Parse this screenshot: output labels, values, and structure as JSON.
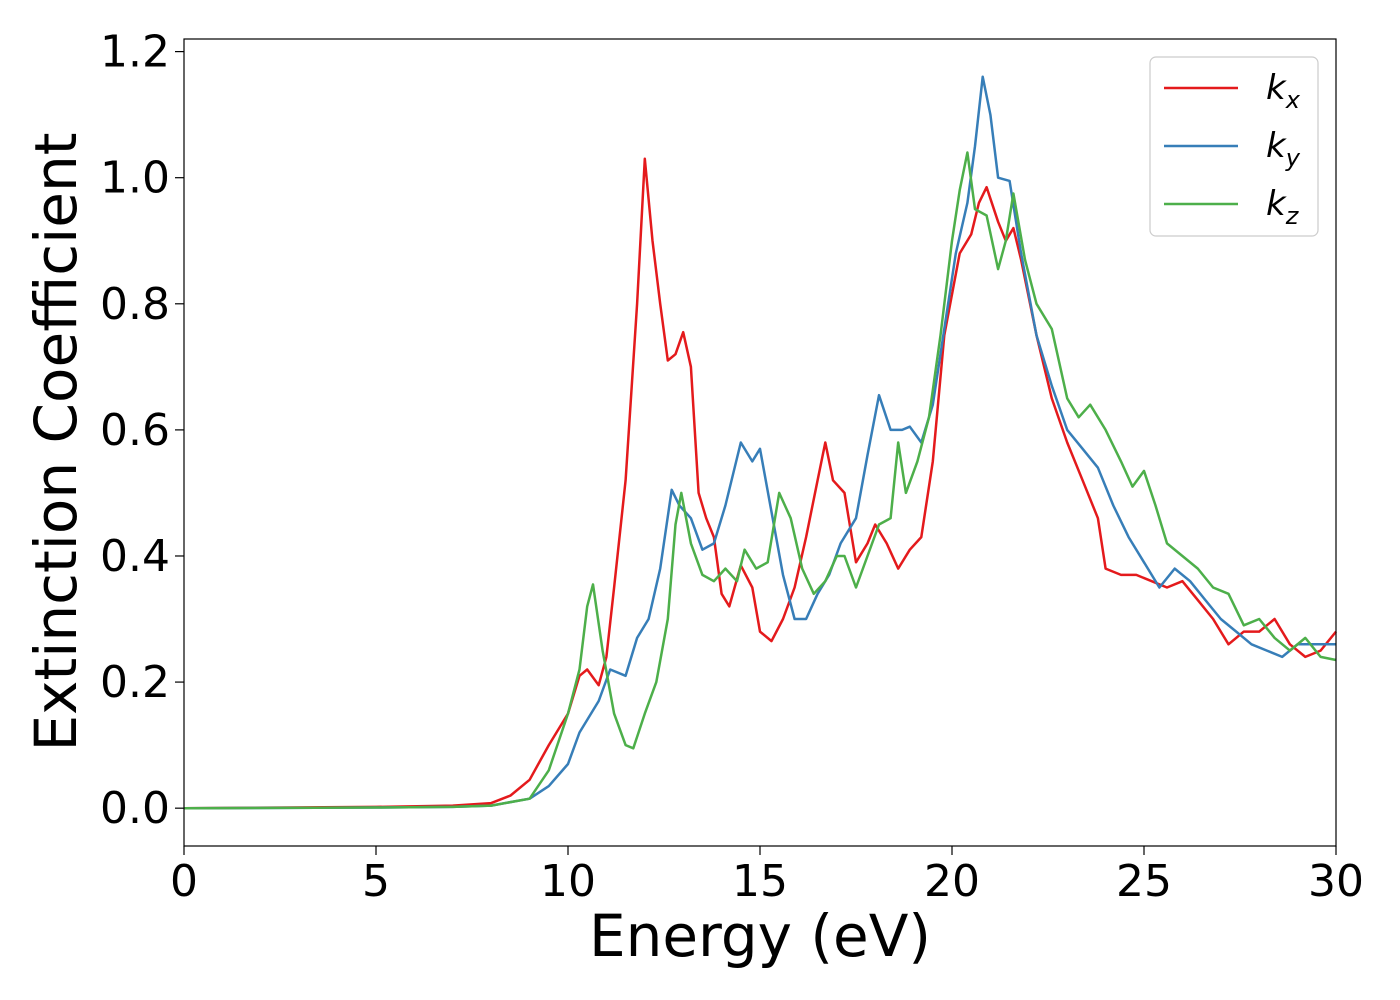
{
  "chart_data": {
    "type": "line",
    "title": "",
    "xlabel": "Energy (eV)",
    "ylabel": "Extinction Coefficient",
    "xlim": [
      0,
      30
    ],
    "ylim": [
      -0.06,
      1.22
    ],
    "xticks": [
      0,
      5,
      10,
      15,
      20,
      25,
      30
    ],
    "xtick_labels": [
      "0",
      "5",
      "10",
      "15",
      "20",
      "25",
      "30"
    ],
    "yticks": [
      0.0,
      0.2,
      0.4,
      0.6,
      0.8,
      1.0,
      1.2
    ],
    "ytick_labels": [
      "0.0",
      "0.2",
      "0.4",
      "0.6",
      "0.8",
      "1.0",
      "1.2"
    ],
    "grid": false,
    "legend_position": "top-right",
    "series": [
      {
        "name": "kx",
        "label_main": "k",
        "label_sub": "x",
        "color": "#e41a1c",
        "points": [
          [
            0,
            0
          ],
          [
            5,
            0.002
          ],
          [
            7,
            0.004
          ],
          [
            8,
            0.008
          ],
          [
            8.5,
            0.02
          ],
          [
            9,
            0.045
          ],
          [
            9.5,
            0.1
          ],
          [
            10,
            0.15
          ],
          [
            10.3,
            0.21
          ],
          [
            10.5,
            0.22
          ],
          [
            10.8,
            0.195
          ],
          [
            11,
            0.24
          ],
          [
            11.2,
            0.35
          ],
          [
            11.5,
            0.52
          ],
          [
            11.8,
            0.8
          ],
          [
            12,
            1.03
          ],
          [
            12.2,
            0.9
          ],
          [
            12.4,
            0.8
          ],
          [
            12.6,
            0.71
          ],
          [
            12.8,
            0.72
          ],
          [
            13,
            0.755
          ],
          [
            13.2,
            0.7
          ],
          [
            13.4,
            0.5
          ],
          [
            13.6,
            0.46
          ],
          [
            13.8,
            0.43
          ],
          [
            14,
            0.34
          ],
          [
            14.2,
            0.32
          ],
          [
            14.5,
            0.385
          ],
          [
            14.8,
            0.35
          ],
          [
            15,
            0.28
          ],
          [
            15.3,
            0.265
          ],
          [
            15.6,
            0.3
          ],
          [
            15.9,
            0.35
          ],
          [
            16.2,
            0.43
          ],
          [
            16.5,
            0.52
          ],
          [
            16.7,
            0.58
          ],
          [
            16.9,
            0.52
          ],
          [
            17.2,
            0.5
          ],
          [
            17.5,
            0.39
          ],
          [
            17.8,
            0.42
          ],
          [
            18,
            0.45
          ],
          [
            18.3,
            0.42
          ],
          [
            18.6,
            0.38
          ],
          [
            18.9,
            0.41
          ],
          [
            19.2,
            0.43
          ],
          [
            19.5,
            0.55
          ],
          [
            19.8,
            0.75
          ],
          [
            20.2,
            0.88
          ],
          [
            20.5,
            0.91
          ],
          [
            20.7,
            0.96
          ],
          [
            20.9,
            0.985
          ],
          [
            21.2,
            0.93
          ],
          [
            21.4,
            0.9
          ],
          [
            21.6,
            0.92
          ],
          [
            21.8,
            0.87
          ],
          [
            22.2,
            0.75
          ],
          [
            22.6,
            0.65
          ],
          [
            23,
            0.58
          ],
          [
            23.4,
            0.52
          ],
          [
            23.8,
            0.46
          ],
          [
            24,
            0.38
          ],
          [
            24.4,
            0.37
          ],
          [
            24.8,
            0.37
          ],
          [
            25.2,
            0.36
          ],
          [
            25.6,
            0.35
          ],
          [
            26,
            0.36
          ],
          [
            26.4,
            0.33
          ],
          [
            26.8,
            0.3
          ],
          [
            27.2,
            0.26
          ],
          [
            27.6,
            0.28
          ],
          [
            28,
            0.28
          ],
          [
            28.4,
            0.3
          ],
          [
            28.8,
            0.26
          ],
          [
            29.2,
            0.24
          ],
          [
            29.6,
            0.25
          ],
          [
            30,
            0.28
          ]
        ]
      },
      {
        "name": "ky",
        "label_main": "k",
        "label_sub": "y",
        "color": "#377eb8",
        "points": [
          [
            0,
            0
          ],
          [
            5,
            0.001
          ],
          [
            7,
            0.002
          ],
          [
            8,
            0.004
          ],
          [
            9,
            0.015
          ],
          [
            9.5,
            0.035
          ],
          [
            10,
            0.07
          ],
          [
            10.3,
            0.12
          ],
          [
            10.5,
            0.14
          ],
          [
            10.8,
            0.17
          ],
          [
            11.1,
            0.22
          ],
          [
            11.5,
            0.21
          ],
          [
            11.8,
            0.27
          ],
          [
            12.1,
            0.3
          ],
          [
            12.4,
            0.38
          ],
          [
            12.7,
            0.505
          ],
          [
            12.9,
            0.48
          ],
          [
            13.2,
            0.46
          ],
          [
            13.5,
            0.41
          ],
          [
            13.8,
            0.42
          ],
          [
            14.1,
            0.48
          ],
          [
            14.5,
            0.58
          ],
          [
            14.8,
            0.55
          ],
          [
            15,
            0.57
          ],
          [
            15.3,
            0.47
          ],
          [
            15.6,
            0.37
          ],
          [
            15.9,
            0.3
          ],
          [
            16.2,
            0.3
          ],
          [
            16.5,
            0.34
          ],
          [
            16.8,
            0.37
          ],
          [
            17.1,
            0.42
          ],
          [
            17.5,
            0.46
          ],
          [
            17.8,
            0.56
          ],
          [
            18.1,
            0.655
          ],
          [
            18.4,
            0.6
          ],
          [
            18.7,
            0.6
          ],
          [
            18.9,
            0.605
          ],
          [
            19.2,
            0.58
          ],
          [
            19.5,
            0.64
          ],
          [
            19.8,
            0.76
          ],
          [
            20.1,
            0.88
          ],
          [
            20.4,
            0.96
          ],
          [
            20.6,
            1.05
          ],
          [
            20.8,
            1.16
          ],
          [
            21,
            1.1
          ],
          [
            21.2,
            1.0
          ],
          [
            21.5,
            0.995
          ],
          [
            21.8,
            0.88
          ],
          [
            22.2,
            0.75
          ],
          [
            22.6,
            0.67
          ],
          [
            23,
            0.6
          ],
          [
            23.4,
            0.57
          ],
          [
            23.8,
            0.54
          ],
          [
            24.2,
            0.48
          ],
          [
            24.6,
            0.43
          ],
          [
            25,
            0.39
          ],
          [
            25.4,
            0.35
          ],
          [
            25.8,
            0.38
          ],
          [
            26.2,
            0.36
          ],
          [
            26.6,
            0.33
          ],
          [
            27,
            0.3
          ],
          [
            27.4,
            0.28
          ],
          [
            27.8,
            0.26
          ],
          [
            28.2,
            0.25
          ],
          [
            28.6,
            0.24
          ],
          [
            29,
            0.26
          ],
          [
            29.4,
            0.26
          ],
          [
            30,
            0.26
          ]
        ]
      },
      {
        "name": "kz",
        "label_main": "k",
        "label_sub": "z",
        "color": "#4daf4a",
        "points": [
          [
            0,
            0
          ],
          [
            5,
            0.001
          ],
          [
            7,
            0.002
          ],
          [
            8,
            0.004
          ],
          [
            9,
            0.015
          ],
          [
            9.5,
            0.06
          ],
          [
            10,
            0.15
          ],
          [
            10.3,
            0.22
          ],
          [
            10.5,
            0.32
          ],
          [
            10.65,
            0.355
          ],
          [
            10.9,
            0.25
          ],
          [
            11.2,
            0.15
          ],
          [
            11.5,
            0.1
          ],
          [
            11.7,
            0.095
          ],
          [
            12,
            0.15
          ],
          [
            12.3,
            0.2
          ],
          [
            12.6,
            0.3
          ],
          [
            12.8,
            0.45
          ],
          [
            12.95,
            0.5
          ],
          [
            13.2,
            0.42
          ],
          [
            13.5,
            0.37
          ],
          [
            13.8,
            0.36
          ],
          [
            14.1,
            0.38
          ],
          [
            14.4,
            0.36
          ],
          [
            14.6,
            0.41
          ],
          [
            14.9,
            0.38
          ],
          [
            15.2,
            0.39
          ],
          [
            15.5,
            0.5
          ],
          [
            15.8,
            0.46
          ],
          [
            16.1,
            0.38
          ],
          [
            16.4,
            0.34
          ],
          [
            16.7,
            0.36
          ],
          [
            17,
            0.4
          ],
          [
            17.2,
            0.4
          ],
          [
            17.5,
            0.35
          ],
          [
            17.8,
            0.4
          ],
          [
            18.1,
            0.45
          ],
          [
            18.4,
            0.46
          ],
          [
            18.6,
            0.58
          ],
          [
            18.8,
            0.5
          ],
          [
            19.1,
            0.55
          ],
          [
            19.4,
            0.62
          ],
          [
            19.7,
            0.75
          ],
          [
            20,
            0.9
          ],
          [
            20.2,
            0.98
          ],
          [
            20.4,
            1.04
          ],
          [
            20.6,
            0.95
          ],
          [
            20.9,
            0.94
          ],
          [
            21.2,
            0.855
          ],
          [
            21.4,
            0.9
          ],
          [
            21.6,
            0.975
          ],
          [
            21.9,
            0.87
          ],
          [
            22.2,
            0.8
          ],
          [
            22.6,
            0.76
          ],
          [
            23,
            0.65
          ],
          [
            23.3,
            0.62
          ],
          [
            23.6,
            0.64
          ],
          [
            24,
            0.6
          ],
          [
            24.4,
            0.55
          ],
          [
            24.7,
            0.51
          ],
          [
            25,
            0.535
          ],
          [
            25.3,
            0.48
          ],
          [
            25.6,
            0.42
          ],
          [
            26,
            0.4
          ],
          [
            26.4,
            0.38
          ],
          [
            26.8,
            0.35
          ],
          [
            27.2,
            0.34
          ],
          [
            27.6,
            0.29
          ],
          [
            28,
            0.3
          ],
          [
            28.4,
            0.27
          ],
          [
            28.8,
            0.25
          ],
          [
            29.2,
            0.27
          ],
          [
            29.6,
            0.24
          ],
          [
            30,
            0.235
          ]
        ]
      }
    ]
  }
}
